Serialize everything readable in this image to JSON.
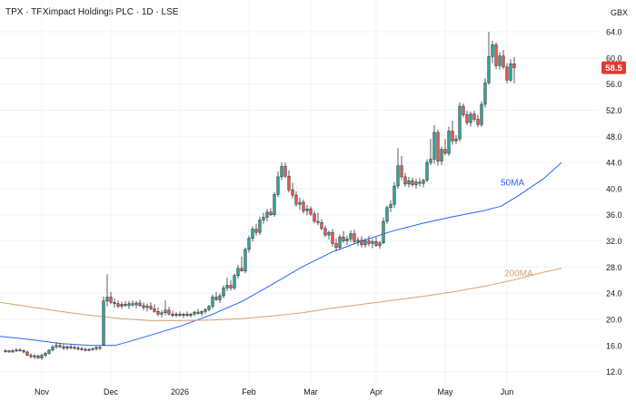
{
  "header": {
    "title": "TPX · TPXimpact Holdings PLC · 1D · LSE",
    "currency": "GBX"
  },
  "colors": {
    "up": "#26a69a",
    "down": "#ef5350",
    "ma50": "#2962ff",
    "ma200": "#d4a373",
    "price_tag": "#e53935",
    "grid": "#f0f3fa",
    "axis_text": "#131722",
    "wick": "#333333"
  },
  "chart_data": {
    "type": "candlestick",
    "title": "TPX · TPXimpact Holdings PLC · 1D · LSE",
    "x_tick_labels": [
      "Nov",
      "Dec",
      "2026",
      "Feb",
      "Mar",
      "Apr",
      "May",
      "Jun"
    ],
    "y_tick_labels": [
      "64.0",
      "60.0",
      "56.0",
      "52.0",
      "48.0",
      "44.0",
      "40.0",
      "36.0",
      "32.0",
      "28.0",
      "24.0",
      "20.0",
      "16.0",
      "12.0"
    ],
    "ylim": [
      10.0,
      66.5
    ],
    "grid": true,
    "last_price": "58.5",
    "series": [
      {
        "name": "50MA",
        "points": [
          [
            0,
            17.4
          ],
          [
            10,
            16.9
          ],
          [
            20,
            16.3
          ],
          [
            30,
            16.0
          ],
          [
            38,
            16.0
          ],
          [
            42,
            16.5
          ],
          [
            50,
            17.6
          ],
          [
            60,
            19.0
          ],
          [
            70,
            20.7
          ],
          [
            80,
            22.7
          ],
          [
            90,
            25.3
          ],
          [
            100,
            28.0
          ],
          [
            110,
            30.3
          ],
          [
            120,
            32.0
          ],
          [
            130,
            33.5
          ],
          [
            140,
            34.7
          ],
          [
            150,
            35.7
          ],
          [
            160,
            36.6
          ],
          [
            166,
            37.3
          ],
          [
            172,
            39.0
          ],
          [
            180,
            41.5
          ],
          [
            186,
            44.0
          ]
        ]
      },
      {
        "name": "200MA",
        "points": [
          [
            0,
            22.6
          ],
          [
            10,
            21.9
          ],
          [
            20,
            21.2
          ],
          [
            30,
            20.6
          ],
          [
            40,
            20.1
          ],
          [
            50,
            19.8
          ],
          [
            60,
            19.8
          ],
          [
            70,
            19.9
          ],
          [
            80,
            20.1
          ],
          [
            90,
            20.5
          ],
          [
            100,
            21.0
          ],
          [
            110,
            21.7
          ],
          [
            120,
            22.3
          ],
          [
            130,
            22.9
          ],
          [
            140,
            23.5
          ],
          [
            150,
            24.2
          ],
          [
            160,
            25.0
          ],
          [
            170,
            26.0
          ],
          [
            180,
            27.2
          ],
          [
            186,
            27.8
          ]
        ]
      }
    ],
    "labels": [
      {
        "text": "50MA",
        "color": "ma50",
        "value": 40.5
      },
      {
        "text": "200MA",
        "color": "ma200",
        "value": 26.6
      }
    ],
    "candles": [
      [
        0,
        15.1,
        15.4,
        14.9,
        15.2
      ],
      [
        1,
        15.2,
        15.3,
        14.9,
        15.0
      ],
      [
        2,
        15.0,
        15.4,
        14.9,
        15.2
      ],
      [
        3,
        15.2,
        15.6,
        15.0,
        15.3
      ],
      [
        4,
        15.3,
        15.6,
        15.1,
        15.2
      ],
      [
        5,
        15.2,
        15.4,
        14.8,
        15.0
      ],
      [
        6,
        15.0,
        15.2,
        14.4,
        14.5
      ],
      [
        7,
        14.5,
        14.8,
        14.0,
        14.3
      ],
      [
        8,
        14.3,
        14.7,
        13.9,
        14.4
      ],
      [
        9,
        14.4,
        14.6,
        13.9,
        14.1
      ],
      [
        10,
        14.1,
        14.7,
        13.8,
        14.5
      ],
      [
        11,
        14.5,
        15.0,
        14.2,
        14.8
      ],
      [
        12,
        14.8,
        15.4,
        14.6,
        15.3
      ],
      [
        13,
        15.3,
        16.0,
        15.1,
        15.8
      ],
      [
        14,
        15.8,
        16.5,
        15.5,
        16.0
      ],
      [
        15,
        16.0,
        16.4,
        15.6,
        15.8
      ],
      [
        16,
        15.8,
        16.2,
        15.3,
        15.6
      ],
      [
        17,
        15.6,
        16.0,
        15.3,
        15.8
      ],
      [
        18,
        15.8,
        16.1,
        15.4,
        15.7
      ],
      [
        19,
        15.7,
        16.0,
        15.4,
        15.6
      ],
      [
        20,
        15.6,
        15.9,
        15.2,
        15.5
      ],
      [
        21,
        15.5,
        15.8,
        15.2,
        15.4
      ],
      [
        22,
        15.4,
        15.7,
        15.1,
        15.3
      ],
      [
        23,
        15.3,
        15.6,
        15.1,
        15.4
      ],
      [
        24,
        15.4,
        15.7,
        15.2,
        15.5
      ],
      [
        25,
        15.5,
        15.9,
        15.2,
        15.7
      ],
      [
        26,
        15.7,
        16.0,
        15.3,
        15.6
      ],
      [
        27,
        16.0,
        23.5,
        16.0,
        22.8
      ],
      [
        28,
        22.8,
        26.9,
        22.0,
        23.4
      ],
      [
        29,
        23.4,
        24.2,
        22.3,
        22.6
      ],
      [
        30,
        22.6,
        23.2,
        21.8,
        22.4
      ],
      [
        31,
        22.4,
        22.9,
        21.7,
        22.0
      ],
      [
        32,
        22.0,
        22.7,
        21.6,
        22.3
      ],
      [
        33,
        22.3,
        22.8,
        21.9,
        22.1
      ],
      [
        34,
        22.1,
        22.8,
        21.6,
        22.4
      ],
      [
        35,
        22.4,
        22.9,
        21.9,
        22.2
      ],
      [
        36,
        22.2,
        22.8,
        21.7,
        22.5
      ],
      [
        37,
        22.5,
        23.0,
        21.9,
        22.1
      ],
      [
        38,
        22.1,
        22.6,
        21.4,
        21.8
      ],
      [
        39,
        21.8,
        22.4,
        21.2,
        22.0
      ],
      [
        40,
        22.0,
        22.6,
        21.4,
        21.6
      ],
      [
        41,
        21.6,
        22.3,
        21.0,
        21.2
      ],
      [
        42,
        21.2,
        21.8,
        20.5,
        20.8
      ],
      [
        43,
        20.8,
        21.4,
        20.3,
        21.0
      ],
      [
        44,
        21.0,
        22.9,
        20.6,
        21.4
      ],
      [
        45,
        21.4,
        21.9,
        20.6,
        20.8
      ],
      [
        46,
        20.8,
        21.3,
        20.3,
        20.6
      ],
      [
        47,
        20.6,
        21.1,
        20.3,
        20.8
      ],
      [
        48,
        20.8,
        21.2,
        20.4,
        20.6
      ],
      [
        49,
        20.6,
        21.0,
        20.2,
        20.8
      ],
      [
        50,
        20.8,
        21.2,
        20.4,
        20.6
      ],
      [
        51,
        20.6,
        21.0,
        20.3,
        20.8
      ],
      [
        52,
        20.8,
        21.3,
        20.5,
        21.1
      ],
      [
        53,
        21.1,
        21.6,
        20.7,
        20.9
      ],
      [
        54,
        20.9,
        21.4,
        20.5,
        21.2
      ],
      [
        55,
        21.2,
        21.7,
        20.8,
        21.5
      ],
      [
        56,
        21.5,
        22.2,
        21.2,
        22.0
      ],
      [
        57,
        22.0,
        23.8,
        21.6,
        23.4
      ],
      [
        58,
        23.4,
        24.2,
        22.8,
        23.0
      ],
      [
        59,
        23.0,
        24.0,
        22.5,
        23.6
      ],
      [
        60,
        23.6,
        25.2,
        23.2,
        24.8
      ],
      [
        61,
        24.8,
        26.4,
        24.3,
        25.2
      ],
      [
        62,
        25.2,
        26.0,
        24.4,
        24.8
      ],
      [
        63,
        24.8,
        27.0,
        24.5,
        26.7
      ],
      [
        64,
        26.7,
        28.3,
        26.2,
        27.8
      ],
      [
        65,
        27.8,
        29.6,
        27.3,
        27.4
      ],
      [
        66,
        27.4,
        31.0,
        27.0,
        30.7
      ],
      [
        67,
        30.7,
        32.8,
        30.2,
        32.4
      ],
      [
        68,
        32.4,
        34.2,
        31.9,
        33.8
      ],
      [
        69,
        33.8,
        34.6,
        32.8,
        33.3
      ],
      [
        70,
        33.3,
        35.7,
        32.9,
        35.2
      ],
      [
        71,
        35.2,
        36.3,
        34.6,
        35.6
      ],
      [
        72,
        35.6,
        36.9,
        35.0,
        36.4
      ],
      [
        73,
        36.4,
        37.0,
        35.8,
        36.0
      ],
      [
        74,
        36.0,
        39.5,
        35.7,
        39.1
      ],
      [
        75,
        39.1,
        42.6,
        38.7,
        41.8
      ],
      [
        76,
        41.8,
        44.0,
        41.3,
        43.4
      ],
      [
        77,
        43.4,
        44.0,
        41.6,
        41.9
      ],
      [
        78,
        41.9,
        42.8,
        39.4,
        39.8
      ],
      [
        79,
        39.8,
        40.9,
        38.5,
        39.0
      ],
      [
        80,
        39.0,
        39.6,
        37.2,
        37.6
      ],
      [
        81,
        37.6,
        38.6,
        36.8,
        37.9
      ],
      [
        82,
        37.9,
        38.3,
        36.2,
        36.6
      ],
      [
        83,
        36.6,
        37.5,
        35.9,
        36.9
      ],
      [
        84,
        36.9,
        37.3,
        35.8,
        36.1
      ],
      [
        85,
        36.1,
        36.6,
        34.7,
        35.0
      ],
      [
        86,
        35.0,
        36.3,
        34.4,
        34.8
      ],
      [
        87,
        34.8,
        35.3,
        33.6,
        33.9
      ],
      [
        88,
        33.9,
        34.4,
        32.6,
        32.9
      ],
      [
        89,
        32.9,
        33.6,
        32.2,
        33.3
      ],
      [
        90,
        33.3,
        33.8,
        31.1,
        31.6
      ],
      [
        91,
        31.6,
        32.4,
        30.4,
        31.0
      ],
      [
        92,
        31.0,
        33.0,
        30.6,
        32.6
      ],
      [
        93,
        32.6,
        33.5,
        31.7,
        32.0
      ],
      [
        94,
        32.0,
        32.8,
        31.4,
        32.3
      ],
      [
        95,
        32.3,
        33.6,
        31.8,
        33.1
      ],
      [
        96,
        33.1,
        33.7,
        31.6,
        31.9
      ],
      [
        97,
        31.9,
        32.6,
        31.2,
        32.1
      ],
      [
        98,
        32.1,
        32.7,
        31.0,
        31.4
      ],
      [
        99,
        31.4,
        32.4,
        31.0,
        32.0
      ],
      [
        100,
        32.0,
        32.8,
        31.2,
        31.6
      ],
      [
        101,
        31.6,
        32.3,
        30.9,
        31.9
      ],
      [
        102,
        31.9,
        32.6,
        31.1,
        31.3
      ],
      [
        103,
        31.3,
        32.0,
        30.8,
        31.7
      ],
      [
        104,
        31.7,
        35.6,
        31.5,
        35.0
      ],
      [
        105,
        35.0,
        37.4,
        34.6,
        37.1
      ],
      [
        106,
        37.1,
        38.2,
        36.4,
        37.6
      ],
      [
        107,
        37.6,
        41.0,
        37.0,
        40.4
      ],
      [
        108,
        40.4,
        46.2,
        40.0,
        43.5
      ],
      [
        109,
        43.5,
        45.0,
        41.3,
        41.8
      ],
      [
        110,
        41.8,
        42.4,
        40.3,
        40.7
      ],
      [
        111,
        40.7,
        41.8,
        40.2,
        41.2
      ],
      [
        112,
        41.2,
        41.7,
        40.3,
        40.6
      ],
      [
        113,
        40.6,
        41.5,
        40.0,
        41.0
      ],
      [
        114,
        41.0,
        41.6,
        40.3,
        40.8
      ],
      [
        115,
        40.8,
        41.5,
        40.2,
        41.3
      ],
      [
        116,
        41.3,
        44.5,
        41.0,
        44.0
      ],
      [
        117,
        44.0,
        47.6,
        43.6,
        44.5
      ],
      [
        118,
        44.5,
        49.7,
        43.8,
        48.6
      ],
      [
        119,
        48.6,
        49.0,
        43.5,
        44.2
      ],
      [
        120,
        44.2,
        46.4,
        43.6,
        46.0
      ],
      [
        121,
        46.0,
        47.6,
        45.1,
        45.4
      ],
      [
        122,
        45.4,
        49.5,
        45.0,
        48.8
      ],
      [
        123,
        48.8,
        50.4,
        46.7,
        47.3
      ],
      [
        124,
        47.3,
        48.2,
        46.8,
        47.6
      ],
      [
        125,
        47.6,
        53.2,
        47.2,
        52.6
      ],
      [
        126,
        52.6,
        53.0,
        50.9,
        51.3
      ],
      [
        127,
        51.3,
        51.9,
        49.7,
        50.1
      ],
      [
        128,
        50.1,
        51.8,
        49.5,
        51.4
      ],
      [
        129,
        51.4,
        51.9,
        50.2,
        50.6
      ],
      [
        130,
        50.6,
        51.3,
        49.4,
        49.8
      ],
      [
        131,
        49.8,
        53.4,
        49.4,
        52.9
      ],
      [
        132,
        52.9,
        56.9,
        52.4,
        56.2
      ],
      [
        133,
        56.2,
        64.0,
        55.9,
        60.2
      ],
      [
        134,
        60.2,
        62.6,
        59.2,
        62.0
      ],
      [
        135,
        62.0,
        62.4,
        58.3,
        58.8
      ],
      [
        136,
        58.8,
        60.9,
        58.2,
        60.3
      ],
      [
        137,
        60.3,
        61.2,
        58.3,
        58.6
      ],
      [
        138,
        58.6,
        59.2,
        56.1,
        56.6
      ],
      [
        139,
        56.6,
        59.8,
        56.3,
        59.1
      ],
      [
        140,
        59.1,
        60.1,
        56.1,
        58.5
      ]
    ]
  }
}
